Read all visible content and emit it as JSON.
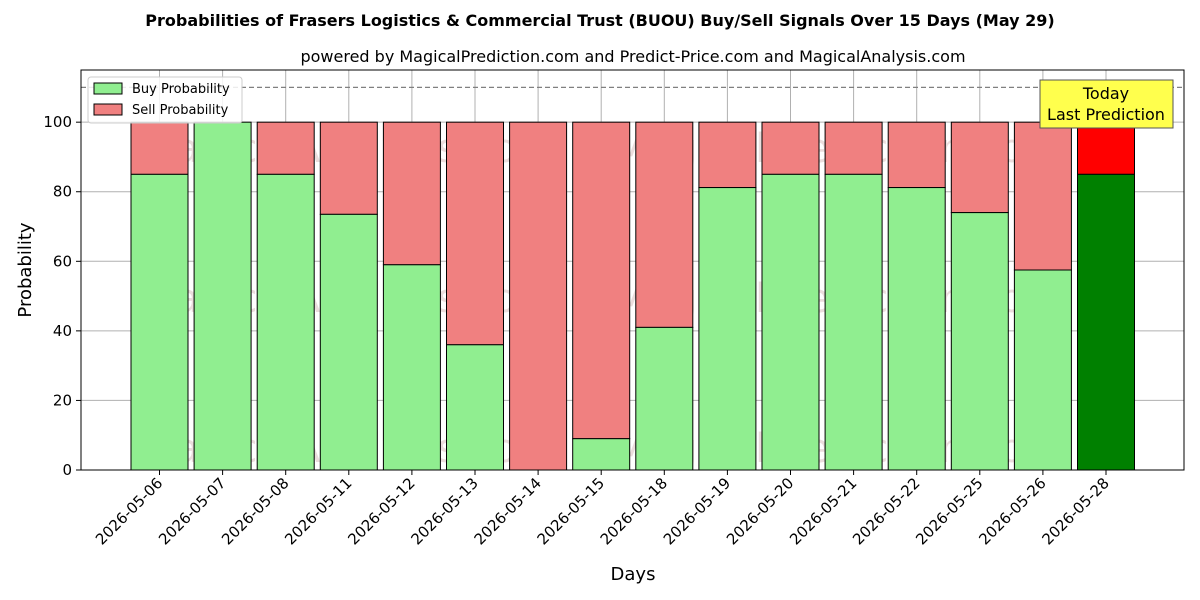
{
  "chart_data": {
    "type": "bar",
    "title": "Probabilities of Frasers Logistics & Commercial Trust (BUOU) Buy/Sell Signals Over 15 Days (May 29)",
    "subtitle": "powered by MagicalPrediction.com and Predict-Price.com and MagicalAnalysis.com",
    "xlabel": "Days",
    "ylabel": "Probability",
    "ylim": [
      0,
      115
    ],
    "yticks": [
      0,
      20,
      40,
      60,
      80,
      100
    ],
    "grid": true,
    "legend_position": "top-left",
    "categories": [
      "2026-05-06",
      "2026-05-07",
      "2026-05-08",
      "2026-05-11",
      "2026-05-12",
      "2026-05-13",
      "2026-05-14",
      "2026-05-15",
      "2026-05-18",
      "2026-05-19",
      "2026-05-20",
      "2026-05-21",
      "2026-05-22",
      "2026-05-25",
      "2026-05-26",
      "2026-05-28"
    ],
    "series": [
      {
        "name": "Buy Probability",
        "color": "#90ee90",
        "values": [
          85,
          100,
          85,
          73.5,
          59,
          36,
          0,
          9,
          41,
          81.2,
          85,
          85,
          81.2,
          74,
          57.5,
          85
        ]
      },
      {
        "name": "Sell Probability",
        "color": "#f08080",
        "values": [
          15,
          0,
          15,
          26.5,
          41,
          64,
          100,
          91,
          59,
          18.8,
          15,
          15,
          18.8,
          26,
          42.5,
          15
        ]
      }
    ],
    "highlight": {
      "index": 15,
      "buy_color": "#008000",
      "sell_color": "#ff0000"
    },
    "reference_line": {
      "y": 110,
      "style": "dashed",
      "color": "#808080"
    },
    "annotation": {
      "line1": "Today",
      "line2": "Last Prediction",
      "background": "#ffff4d"
    },
    "watermarks": [
      "MagicalAnalysis.com",
      "MagicalPrediction.com"
    ]
  }
}
